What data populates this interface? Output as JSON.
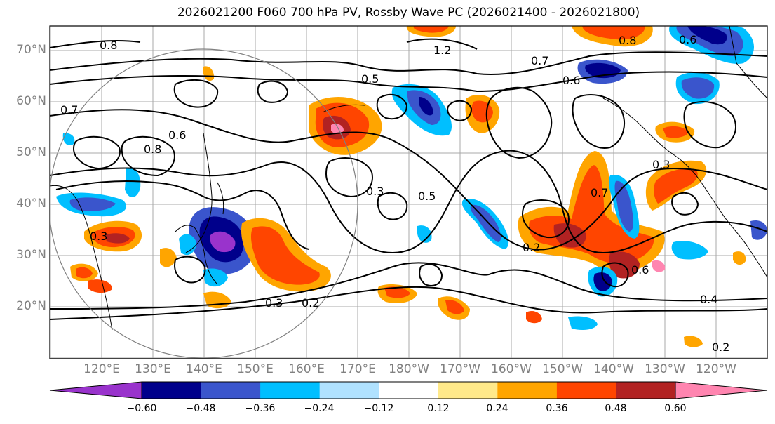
{
  "title": "2026021200 F060 700 hPa PV, Rossby Wave PC (2026021400 - 2026021800)",
  "map": {
    "lat_labels": [
      "70°N",
      "60°N",
      "50°N",
      "40°N",
      "30°N",
      "20°N"
    ],
    "lon_labels": [
      "120°E",
      "130°E",
      "140°E",
      "150°E",
      "160°E",
      "170°E",
      "180°W",
      "170°W",
      "160°W",
      "150°W",
      "140°W",
      "130°W",
      "120°W"
    ],
    "contour_labels": [
      "1.2",
      "0.7",
      "0.8",
      "0.6",
      "0.7",
      "0.6",
      "0.8",
      "0.5",
      "0.3",
      "0.5",
      "0.2",
      "0.3",
      "0.2",
      "0.4",
      "0.2",
      "0.3",
      "0.6",
      "0.7",
      "0.3",
      "0.8",
      "0.6"
    ]
  },
  "colorbar": {
    "colors": [
      "#9933cc",
      "#00008b",
      "#3a55cc",
      "#00bfff",
      "#b0e2ff",
      "#ffffff",
      "#ffe98a",
      "#ffa500",
      "#ff4500",
      "#b22222",
      "#ff85b0"
    ],
    "ticks": [
      "−0.60",
      "−0.48",
      "−0.36",
      "−0.24",
      "−0.12",
      "0.12",
      "0.24",
      "0.36",
      "0.48",
      "0.60"
    ]
  }
}
